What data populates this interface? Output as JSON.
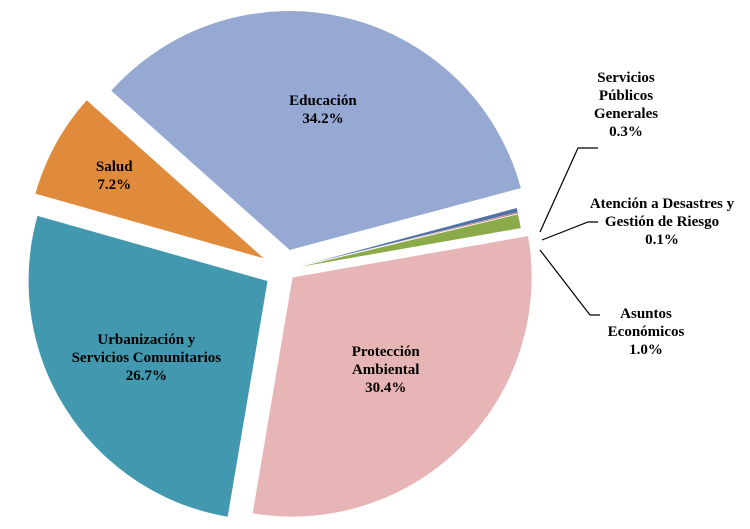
{
  "chart_data": {
    "type": "pie",
    "categories": [
      "Servicios Públicos Generales",
      "Atención a Desastres y Gestión de Riesgo",
      "Asuntos Económicos",
      "Protección Ambiental",
      "Urbanización y Servicios Comunitarios",
      "Salud",
      "Educación"
    ],
    "values": [
      0.3,
      0.1,
      1.0,
      30.4,
      26.7,
      7.2,
      34.2
    ],
    "value_labels": [
      "0.3%",
      "0.1%",
      "1.0%",
      "30.4%",
      "26.7%",
      "7.2%",
      "34.2%"
    ],
    "colors": [
      "#4F71A8",
      "#C0504D",
      "#8BAA4A",
      "#E7B5B5",
      "#4298AE",
      "#E08A3C",
      "#95A9D3"
    ]
  }
}
